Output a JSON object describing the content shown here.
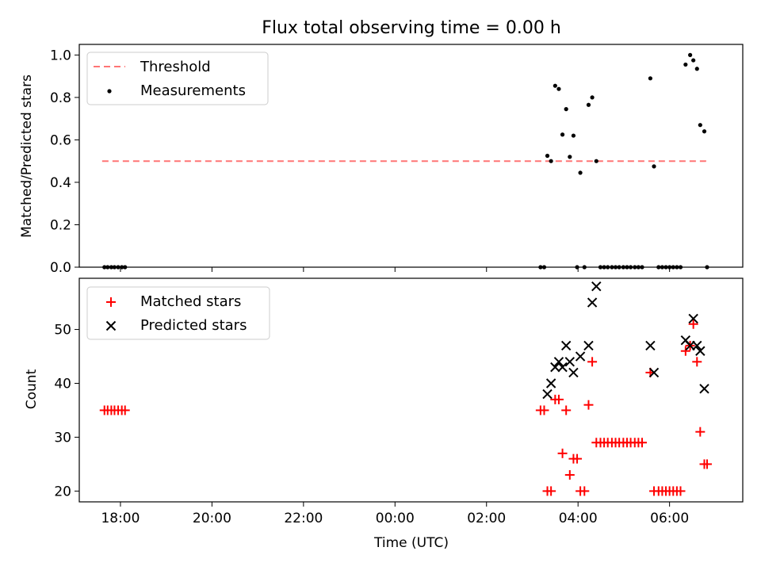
{
  "chart_data": [
    {
      "type": "scatter",
      "title": "Flux total observing time = 0.00 h",
      "xlabel": "",
      "ylabel": "Matched/Predicted stars",
      "ylim": [
        0,
        1.05
      ],
      "yticks": [
        "0.0",
        "0.2",
        "0.4",
        "0.6",
        "0.8",
        "1.0"
      ],
      "ytick_values": [
        0,
        0.2,
        0.4,
        0.6,
        0.8,
        1.0
      ],
      "xlim_hours": [
        -6.9,
        7.6
      ],
      "legend_position": "top-left",
      "threshold": {
        "name": "Threshold",
        "y": 0.5,
        "x_range_hours": [
          -6.4,
          6.8
        ],
        "color": "#ff7575"
      },
      "series": [
        {
          "name": "Measurements",
          "color": "#000000",
          "points": [
            [
              -6.35,
              0
            ],
            [
              -6.28,
              0
            ],
            [
              -6.2,
              0
            ],
            [
              -6.13,
              0
            ],
            [
              -6.05,
              0
            ],
            [
              -5.97,
              0
            ],
            [
              -5.9,
              0
            ],
            [
              3.18,
              0
            ],
            [
              3.26,
              0
            ],
            [
              3.33,
              0.525
            ],
            [
              3.41,
              0.5
            ],
            [
              3.5,
              0.855
            ],
            [
              3.58,
              0.84
            ],
            [
              3.66,
              0.625
            ],
            [
              3.74,
              0.745
            ],
            [
              3.82,
              0.52
            ],
            [
              3.9,
              0.62
            ],
            [
              3.98,
              0
            ],
            [
              4.05,
              0.445
            ],
            [
              4.14,
              0
            ],
            [
              4.23,
              0.765
            ],
            [
              4.31,
              0.8
            ],
            [
              4.4,
              0.5
            ],
            [
              4.49,
              0
            ],
            [
              4.57,
              0
            ],
            [
              4.65,
              0
            ],
            [
              4.74,
              0
            ],
            [
              4.82,
              0
            ],
            [
              4.9,
              0
            ],
            [
              4.99,
              0
            ],
            [
              5.07,
              0
            ],
            [
              5.15,
              0
            ],
            [
              5.24,
              0
            ],
            [
              5.32,
              0
            ],
            [
              5.4,
              0
            ],
            [
              5.58,
              0.89
            ],
            [
              5.66,
              0.475
            ],
            [
              5.76,
              0
            ],
            [
              5.84,
              0
            ],
            [
              5.92,
              0
            ],
            [
              6.0,
              0
            ],
            [
              6.08,
              0
            ],
            [
              6.16,
              0
            ],
            [
              6.24,
              0
            ],
            [
              6.35,
              0.955
            ],
            [
              6.45,
              1.0
            ],
            [
              6.52,
              0.975
            ],
            [
              6.6,
              0.935
            ],
            [
              6.67,
              0.67
            ],
            [
              6.76,
              0.64
            ],
            [
              6.82,
              0
            ]
          ]
        }
      ]
    },
    {
      "type": "scatter",
      "title": "",
      "xlabel": "Time (UTC)",
      "ylabel": "Count",
      "ylim": [
        18,
        59.5
      ],
      "yticks": [
        "20",
        "30",
        "40",
        "50"
      ],
      "ytick_values": [
        20,
        30,
        40,
        50
      ],
      "xlim_hours": [
        -6.9,
        7.6
      ],
      "xticks": [
        "18:00",
        "20:00",
        "22:00",
        "00:00",
        "02:00",
        "04:00",
        "06:00"
      ],
      "xtick_hours": [
        -6,
        -4,
        -2,
        0,
        2,
        4,
        6
      ],
      "legend_position": "top-left",
      "series": [
        {
          "name": "Matched stars",
          "marker": "+",
          "color": "#ff0000",
          "points": [
            [
              -6.35,
              35
            ],
            [
              -6.28,
              35
            ],
            [
              -6.2,
              35
            ],
            [
              -6.13,
              35
            ],
            [
              -6.05,
              35
            ],
            [
              -5.97,
              35
            ],
            [
              -5.9,
              35
            ],
            [
              3.18,
              35
            ],
            [
              3.26,
              35
            ],
            [
              3.33,
              20
            ],
            [
              3.41,
              20
            ],
            [
              3.5,
              37
            ],
            [
              3.58,
              37
            ],
            [
              3.66,
              27
            ],
            [
              3.74,
              35
            ],
            [
              3.82,
              23
            ],
            [
              3.9,
              26
            ],
            [
              3.98,
              26
            ],
            [
              4.05,
              20
            ],
            [
              4.14,
              20
            ],
            [
              4.23,
              36
            ],
            [
              4.31,
              44
            ],
            [
              4.4,
              29
            ],
            [
              4.49,
              29
            ],
            [
              4.57,
              29
            ],
            [
              4.65,
              29
            ],
            [
              4.74,
              29
            ],
            [
              4.82,
              29
            ],
            [
              4.9,
              29
            ],
            [
              4.99,
              29
            ],
            [
              5.07,
              29
            ],
            [
              5.15,
              29
            ],
            [
              5.24,
              29
            ],
            [
              5.32,
              29
            ],
            [
              5.4,
              29
            ],
            [
              5.58,
              42
            ],
            [
              5.66,
              20
            ],
            [
              5.76,
              20
            ],
            [
              5.84,
              20
            ],
            [
              5.92,
              20
            ],
            [
              6.0,
              20
            ],
            [
              6.08,
              20
            ],
            [
              6.16,
              20
            ],
            [
              6.24,
              20
            ],
            [
              6.35,
              46
            ],
            [
              6.45,
              47
            ],
            [
              6.52,
              51
            ],
            [
              6.6,
              44
            ],
            [
              6.67,
              31
            ],
            [
              6.76,
              25
            ],
            [
              6.82,
              25
            ]
          ]
        },
        {
          "name": "Predicted stars",
          "marker": "x",
          "color": "#000000",
          "points": [
            [
              3.33,
              38
            ],
            [
              3.41,
              40
            ],
            [
              3.5,
              43
            ],
            [
              3.58,
              44
            ],
            [
              3.66,
              43
            ],
            [
              3.74,
              47
            ],
            [
              3.82,
              44
            ],
            [
              3.9,
              42
            ],
            [
              4.05,
              45
            ],
            [
              4.23,
              47
            ],
            [
              4.31,
              55
            ],
            [
              4.4,
              58
            ],
            [
              5.58,
              47
            ],
            [
              5.66,
              42
            ],
            [
              6.35,
              48
            ],
            [
              6.45,
              47
            ],
            [
              6.52,
              52
            ],
            [
              6.6,
              47
            ],
            [
              6.67,
              46
            ],
            [
              6.76,
              39
            ]
          ]
        }
      ]
    }
  ]
}
